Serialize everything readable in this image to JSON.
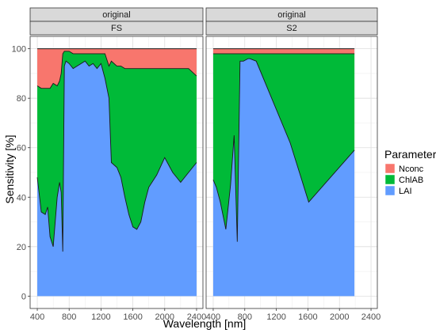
{
  "chart_data": {
    "type": "area",
    "ylabel": "Sensitivity [%]",
    "xlabel": "Wavelength [nm]",
    "xlim": [
      310,
      2480
    ],
    "ylim": [
      -5,
      105
    ],
    "x_ticks": [
      400,
      800,
      1200,
      1600,
      2000,
      2400
    ],
    "y_ticks": [
      0,
      20,
      40,
      60,
      80,
      100
    ],
    "grid": true,
    "stacked": true,
    "legend": {
      "title": "Parameter",
      "position": "right",
      "entries": [
        {
          "label": "Nconc",
          "color": "#F8766D"
        },
        {
          "label": "ChlAB",
          "color": "#00BA38"
        },
        {
          "label": "LAI",
          "color": "#619CFF"
        }
      ]
    },
    "panels": [
      {
        "strip_top": "original",
        "strip_bottom": "FS",
        "x": [
          400,
          450,
          500,
          530,
          560,
          600,
          650,
          680,
          700,
          720,
          740,
          760,
          800,
          850,
          900,
          950,
          1000,
          1050,
          1100,
          1150,
          1200,
          1250,
          1300,
          1330,
          1400,
          1450,
          1500,
          1550,
          1600,
          1650,
          1700,
          1750,
          1800,
          1900,
          2000,
          2050,
          2100,
          2150,
          2200,
          2300,
          2400
        ],
        "series": [
          {
            "name": "LAI",
            "values": [
              48,
              34,
              33,
              36,
              24,
              20,
              40,
              46,
              42,
              18,
              93,
              95,
              94,
              92,
              93,
              94,
              95,
              93,
              94,
              92,
              94,
              88,
              80,
              54,
              52,
              48,
              40,
              33,
              28,
              27,
              30,
              38,
              44,
              49,
              56,
              53,
              50,
              48,
              46,
              50,
              54
            ]
          },
          {
            "name": "ChlAB",
            "values": [
              37,
              50,
              51,
              48,
              60,
              66,
              45,
              41,
              48,
              80,
              6,
              4,
              5,
              6,
              5,
              4,
              3,
              5,
              4,
              6,
              4,
              10,
              13,
              41,
              41,
              45,
              52,
              59,
              64,
              65,
              62,
              54,
              48,
              43,
              36,
              39,
              42,
              44,
              46,
              42,
              35
            ]
          },
          {
            "name": "Nconc",
            "values": [
              15,
              16,
              16,
              16,
              16,
              14,
              15,
              13,
              10,
              2,
              1,
              1,
              1,
              2,
              2,
              2,
              2,
              2,
              2,
              2,
              2,
              2,
              7,
              5,
              7,
              7,
              8,
              8,
              8,
              8,
              8,
              8,
              8,
              8,
              8,
              8,
              8,
              8,
              8,
              8,
              11
            ]
          }
        ]
      },
      {
        "strip_top": "original",
        "strip_bottom": "S2",
        "x": [
          400,
          440,
          490,
          560,
          620,
          665,
          705,
          740,
          783,
          842,
          865,
          945,
          1375,
          1610,
          2190
        ],
        "series": [
          {
            "name": "LAI",
            "values": [
              47,
              44,
              38,
              27,
              45,
              65,
              22,
              95,
              95,
              96,
              96,
              95,
              62,
              38,
              59
            ]
          },
          {
            "name": "ChlAB",
            "values": [
              51,
              54,
              60,
              71,
              53,
              33,
              76,
              3,
              3,
              2,
              2,
              3,
              36,
              60,
              39
            ]
          },
          {
            "name": "Nconc",
            "values": [
              2,
              2,
              2,
              2,
              2,
              2,
              2,
              2,
              2,
              2,
              2,
              2,
              2,
              2,
              2
            ]
          }
        ]
      }
    ]
  }
}
